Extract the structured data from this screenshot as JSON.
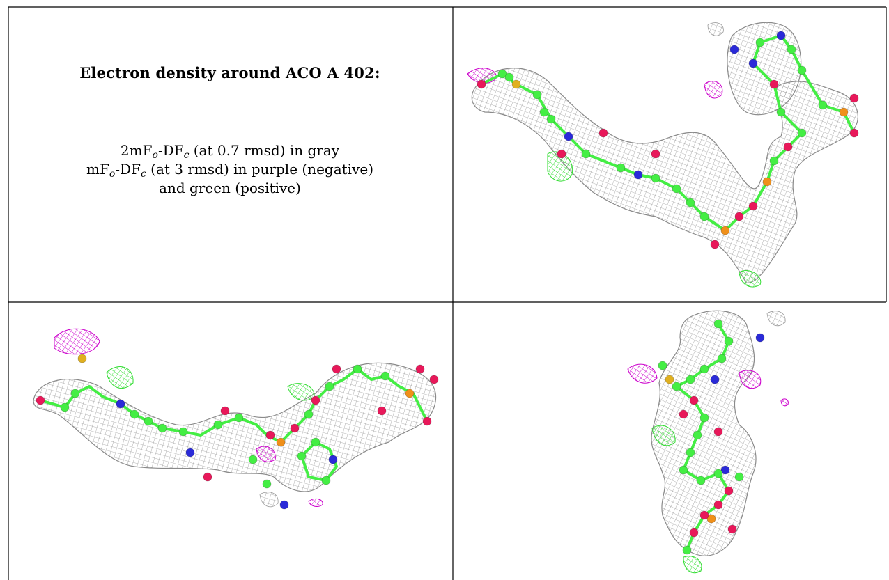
{
  "caption": {
    "title": "Electron density around ACO A 402:",
    "line1": {
      "a": "2mF",
      "a_sub": "o",
      "b": "-DF",
      "b_sub": "c",
      "c": " (at 0.7 rmsd) in gray"
    },
    "line2": {
      "a": "mF",
      "a_sub": "o",
      "b": "-DF",
      "b_sub": "c",
      "c": " (at 3 rmsd) in purple (negative)"
    },
    "line3": "and green (positive)"
  },
  "legend_colors": {
    "twofofc_mesh": "#9a9a9a",
    "fofc_negative": "#cc00cc",
    "fofc_positive": "#33dd33"
  },
  "atom_colors": {
    "carbon": "#44ee44",
    "oxygen": "#e8185a",
    "nitrogen": "#2a2ad8",
    "phosphorus": "#f0901a",
    "sulfur": "#e0b020"
  },
  "panels": [
    "view-1",
    "view-2",
    "view-3"
  ]
}
